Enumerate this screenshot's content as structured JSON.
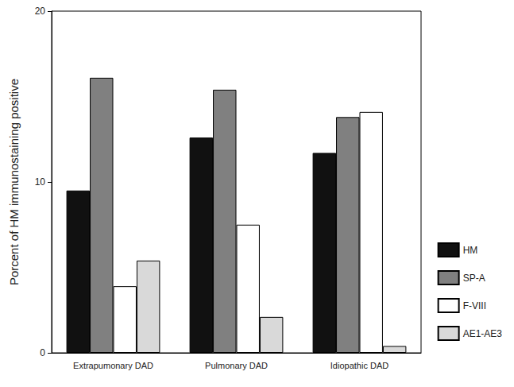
{
  "chart_data": {
    "type": "bar",
    "y_label": "Porcent of HM immunostaining positive",
    "categories": [
      "Extrapumonary DAD",
      "Pulmonary DAD",
      "Idiopathic DAD"
    ],
    "series": [
      {
        "name": "HM",
        "color": "#111111",
        "values": [
          9.5,
          12.6,
          11.7
        ]
      },
      {
        "name": "SP-A",
        "color": "#808080",
        "values": [
          16.1,
          15.4,
          13.8
        ]
      },
      {
        "name": "F-VIII",
        "color": "#ffffff",
        "values": [
          3.9,
          7.5,
          14.1
        ]
      },
      {
        "name": "AE1-AE3",
        "color": "#d9d9d9",
        "values": [
          5.4,
          2.1,
          0.4
        ]
      }
    ],
    "ylim": [
      0,
      20
    ],
    "yticks": [
      0,
      10,
      20
    ],
    "grid": false,
    "legend": "right"
  }
}
